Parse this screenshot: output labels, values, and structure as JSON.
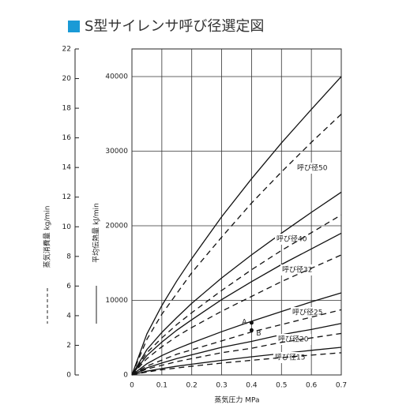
{
  "chart_data": {
    "type": "line",
    "title": "S型サイレンサ呼び径選定図",
    "x_label": "蒸気圧力 MPa",
    "y_label": "平均伝熱量 kJ/min",
    "y2_label": "蒸気消費量 kg/min",
    "x": [
      0,
      0.05,
      0.1,
      0.15,
      0.2,
      0.3,
      0.4,
      0.5,
      0.6,
      0.7
    ],
    "xlim": [
      0,
      0.7
    ],
    "xticks": [
      0,
      0.1,
      0.2,
      0.3,
      0.4,
      0.5,
      0.6,
      0.7
    ],
    "ylim": [
      0,
      43700
    ],
    "yticks": [
      0,
      10000,
      20000,
      30000,
      40000
    ],
    "y2lim": [
      0,
      22
    ],
    "y2ticks": [
      0,
      2,
      4,
      6,
      8,
      10,
      12,
      14,
      16,
      18,
      20,
      22
    ],
    "grid": true,
    "title_color": "#1a9ad6",
    "series": [
      {
        "name": "呼び径50",
        "color": "#111",
        "values": [
          0,
          5500,
          9300,
          12600,
          15600,
          21200,
          26300,
          31100,
          35600,
          40000
        ]
      },
      {
        "color": "#111",
        "axis": "y2",
        "dashed": true,
        "values": [
          0,
          2.4,
          4.1,
          5.5,
          6.9,
          9.3,
          11.6,
          13.7,
          15.7,
          17.6
        ]
      },
      {
        "name": "呼び径40",
        "color": "#111",
        "values": [
          0,
          3400,
          5700,
          7700,
          9600,
          13000,
          16100,
          19000,
          21800,
          24500
        ]
      },
      {
        "color": "#111",
        "axis": "y2",
        "dashed": true,
        "values": [
          0,
          1.5,
          2.5,
          3.4,
          4.2,
          5.7,
          7.1,
          8.4,
          9.6,
          10.8
        ]
      },
      {
        "name": "呼び径32",
        "color": "#111",
        "values": [
          0,
          2600,
          4400,
          6000,
          7400,
          10100,
          12500,
          14800,
          16900,
          19000
        ]
      },
      {
        "color": "#111",
        "axis": "y2",
        "dashed": true,
        "values": [
          0,
          1.1,
          1.9,
          2.6,
          3.2,
          4.3,
          5.3,
          6.3,
          7.2,
          8.1
        ]
      },
      {
        "name": "呼び径25",
        "color": "#111",
        "values": [
          0,
          1500,
          2600,
          3500,
          4300,
          5800,
          7200,
          8500,
          9800,
          11000
        ]
      },
      {
        "color": "#111",
        "axis": "y2",
        "dashed": true,
        "values": [
          0,
          0.6,
          1.0,
          1.4,
          1.7,
          2.3,
          2.9,
          3.4,
          3.9,
          4.4
        ]
      },
      {
        "name": "呼び径20",
        "color": "#111",
        "values": [
          0,
          950,
          1600,
          2200,
          2700,
          3700,
          4500,
          5400,
          6100,
          6900
        ]
      },
      {
        "color": "#111",
        "axis": "y2",
        "dashed": true,
        "values": [
          0,
          0.4,
          0.65,
          0.9,
          1.1,
          1.5,
          1.8,
          2.2,
          2.5,
          2.8
        ]
      },
      {
        "name": "呼び径15",
        "color": "#111",
        "values": [
          0,
          510,
          860,
          1170,
          1440,
          1960,
          2430,
          2870,
          3300,
          3700
        ]
      },
      {
        "color": "#111",
        "axis": "y2",
        "dashed": true,
        "values": [
          0,
          0.2,
          0.35,
          0.47,
          0.59,
          0.8,
          0.99,
          1.17,
          1.34,
          1.5
        ]
      }
    ],
    "points": [
      {
        "label": "A",
        "x": 0.4,
        "y": 7000
      },
      {
        "label": "B",
        "x": 0.4,
        "y": 6000
      }
    ]
  }
}
